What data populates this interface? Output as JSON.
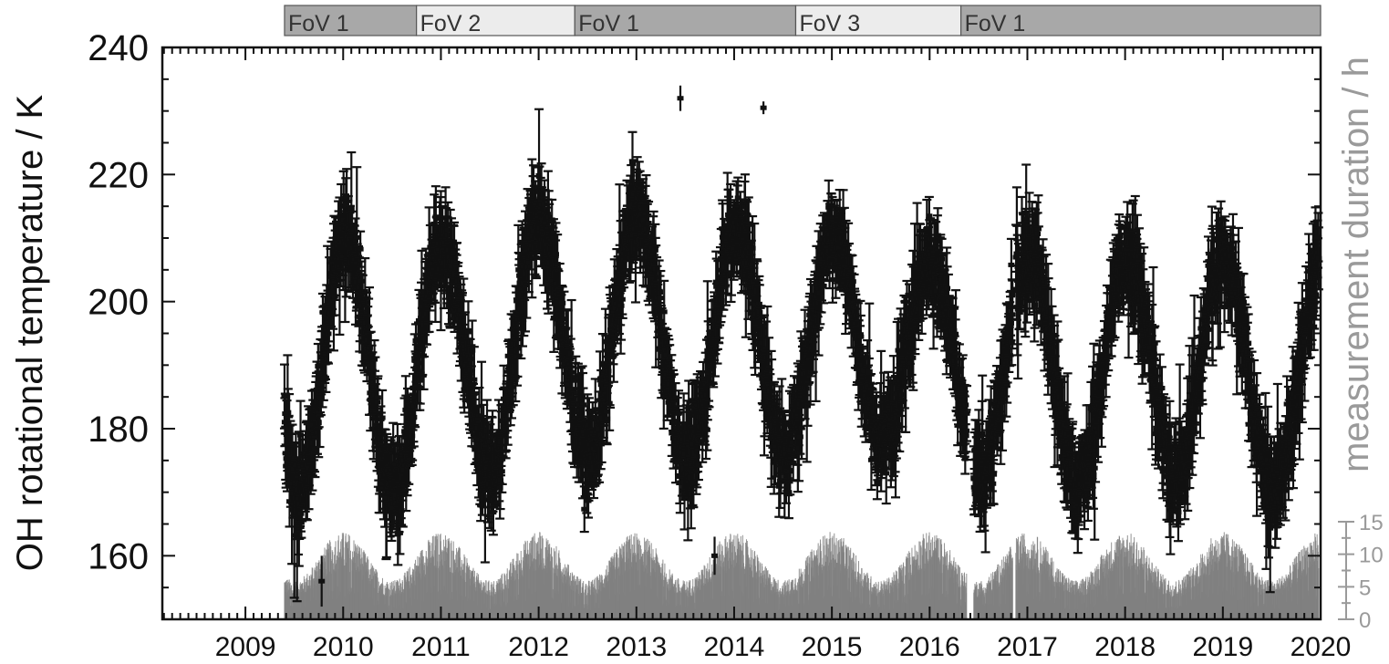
{
  "chart_data": {
    "type": "scatter",
    "ylabel": "OH rotational temperature / K",
    "y2label": "measurement duration / h",
    "xlim": [
      2008.15,
      2020.0
    ],
    "ylim": [
      150,
      240
    ],
    "y2lim": [
      0,
      15
    ],
    "x_ticks": [
      "2009",
      "2010",
      "2011",
      "2012",
      "2013",
      "2014",
      "2015",
      "2016",
      "2017",
      "2018",
      "2019",
      "2020"
    ],
    "x_tick_values": [
      2009,
      2010,
      2011,
      2012,
      2013,
      2014,
      2015,
      2016,
      2017,
      2018,
      2019,
      2020
    ],
    "y_ticks": [
      "160",
      "180",
      "200",
      "220",
      "240"
    ],
    "y_tick_values": [
      160,
      180,
      200,
      220,
      240
    ],
    "y2_ticks": [
      "0",
      "5",
      "10",
      "15"
    ],
    "y2_tick_values": [
      0,
      5,
      10,
      15
    ],
    "grid": false,
    "colors": {
      "temperature": "#111111",
      "duration": "#808080",
      "fov_dark": "#a8a8a8",
      "fov_light": "#ececec"
    },
    "fov_segments": [
      {
        "label": "FoV 1",
        "start": 2009.4,
        "end": 2010.75,
        "shade": "dark"
      },
      {
        "label": "FoV 2",
        "start": 2010.75,
        "end": 2012.37,
        "shade": "light"
      },
      {
        "label": "FoV 1",
        "start": 2012.37,
        "end": 2014.63,
        "shade": "dark"
      },
      {
        "label": "FoV 3",
        "start": 2014.63,
        "end": 2016.32,
        "shade": "light"
      },
      {
        "label": "FoV 1",
        "start": 2016.32,
        "end": 2020.0,
        "shade": "dark"
      }
    ],
    "temperature_model": {
      "description": "nightly mean temperatures, annual oscillation",
      "start": 2009.4,
      "end": 2019.98,
      "winter_peaks": [
        {
          "t": 2010.02,
          "v": 211
        },
        {
          "t": 2011.0,
          "v": 209
        },
        {
          "t": 2011.98,
          "v": 213
        },
        {
          "t": 2013.0,
          "v": 214
        },
        {
          "t": 2014.02,
          "v": 212
        },
        {
          "t": 2015.02,
          "v": 211
        },
        {
          "t": 2016.0,
          "v": 206
        },
        {
          "t": 2017.02,
          "v": 207
        },
        {
          "t": 2018.02,
          "v": 207
        },
        {
          "t": 2019.0,
          "v": 207
        }
      ],
      "summer_minima": [
        {
          "t": 2009.55,
          "v": 170
        },
        {
          "t": 2010.52,
          "v": 170
        },
        {
          "t": 2011.52,
          "v": 173
        },
        {
          "t": 2012.52,
          "v": 176
        },
        {
          "t": 2013.52,
          "v": 175
        },
        {
          "t": 2014.52,
          "v": 176
        },
        {
          "t": 2015.5,
          "v": 178
        },
        {
          "t": 2016.52,
          "v": 173
        },
        {
          "t": 2017.52,
          "v": 171
        },
        {
          "t": 2018.52,
          "v": 172
        },
        {
          "t": 2019.52,
          "v": 170
        }
      ],
      "min_value": 156,
      "max_value": 232
    },
    "duration_model": {
      "description": "nightly measurement duration, longest in winter",
      "start": 2009.4,
      "end": 2019.98,
      "winter_max_h": 13.5,
      "summer_min_h": 6,
      "gaps": [
        [
          2016.38,
          2016.45
        ],
        [
          2016.85,
          2016.88
        ]
      ]
    }
  }
}
